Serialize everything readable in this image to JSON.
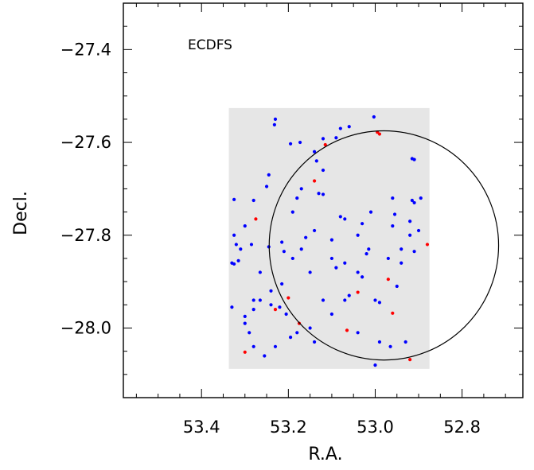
{
  "chart_data": {
    "type": "scatter",
    "title": "",
    "annotation": "ECDFS",
    "xlabel": "R.A.",
    "ylabel": "Decl.",
    "xlim": [
      53.58,
      52.66
    ],
    "ylim": [
      -28.15,
      -27.3
    ],
    "x_ticks": [
      {
        "value": 53.4,
        "label": "53.4"
      },
      {
        "value": 53.2,
        "label": "53.2"
      },
      {
        "value": 53.0,
        "label": "53.0"
      },
      {
        "value": 52.8,
        "label": "52.8"
      }
    ],
    "y_ticks": [
      {
        "value": -27.4,
        "label": "−27.4"
      },
      {
        "value": -27.6,
        "label": "−27.6"
      },
      {
        "value": -27.8,
        "label": "−27.8"
      },
      {
        "value": -28.0,
        "label": "−28.0"
      }
    ],
    "minor_step": 0.05,
    "grid": false,
    "coverage_region": {
      "ra_min": 52.875,
      "ra_max": 53.337,
      "dec_min": -28.088,
      "dec_max": -27.526,
      "color": "#e6e6e6"
    },
    "circle": {
      "ra_center": 52.98,
      "dec_center": -27.822,
      "radius_deg": 0.247
    },
    "series": [
      {
        "color": "#0000ff",
        "points": [
          [
            53.003,
            -27.545
          ],
          [
            53.23,
            -27.55
          ],
          [
            53.232,
            -27.562
          ],
          [
            53.173,
            -27.6
          ],
          [
            53.195,
            -27.603
          ],
          [
            53.12,
            -27.592
          ],
          [
            53.08,
            -27.57
          ],
          [
            53.06,
            -27.566
          ],
          [
            53.09,
            -27.59
          ],
          [
            53.14,
            -27.62
          ],
          [
            53.135,
            -27.64
          ],
          [
            53.12,
            -27.66
          ],
          [
            53.17,
            -27.7
          ],
          [
            53.18,
            -27.72
          ],
          [
            53.25,
            -27.695
          ],
          [
            53.245,
            -27.67
          ],
          [
            53.325,
            -27.723
          ],
          [
            53.28,
            -27.725
          ],
          [
            53.3,
            -27.78
          ],
          [
            53.13,
            -27.71
          ],
          [
            53.12,
            -27.712
          ],
          [
            53.19,
            -27.75
          ],
          [
            53.08,
            -27.76
          ],
          [
            53.07,
            -27.765
          ],
          [
            53.03,
            -27.775
          ],
          [
            53.01,
            -27.75
          ],
          [
            53.04,
            -27.8
          ],
          [
            53.1,
            -27.81
          ],
          [
            53.14,
            -27.79
          ],
          [
            53.16,
            -27.805
          ],
          [
            53.19,
            -27.85
          ],
          [
            53.215,
            -27.815
          ],
          [
            53.21,
            -27.835
          ],
          [
            53.245,
            -27.825
          ],
          [
            53.285,
            -27.82
          ],
          [
            53.325,
            -27.8
          ],
          [
            53.32,
            -27.82
          ],
          [
            53.31,
            -27.83
          ],
          [
            53.33,
            -27.86
          ],
          [
            53.325,
            -27.862
          ],
          [
            53.315,
            -27.855
          ],
          [
            53.265,
            -27.88
          ],
          [
            53.24,
            -27.92
          ],
          [
            53.215,
            -27.905
          ],
          [
            53.17,
            -27.83
          ],
          [
            53.15,
            -27.88
          ],
          [
            53.1,
            -27.85
          ],
          [
            53.09,
            -27.87
          ],
          [
            53.07,
            -27.86
          ],
          [
            53.04,
            -27.88
          ],
          [
            53.03,
            -27.89
          ],
          [
            53.02,
            -27.84
          ],
          [
            53.015,
            -27.83
          ],
          [
            53.0,
            -27.94
          ],
          [
            52.99,
            -27.945
          ],
          [
            52.97,
            -27.85
          ],
          [
            52.96,
            -27.78
          ],
          [
            52.955,
            -27.755
          ],
          [
            52.96,
            -27.72
          ],
          [
            52.94,
            -27.86
          ],
          [
            52.94,
            -27.83
          ],
          [
            52.95,
            -27.91
          ],
          [
            52.92,
            -27.77
          ],
          [
            52.915,
            -27.725
          ],
          [
            52.91,
            -27.73
          ],
          [
            52.895,
            -27.72
          ],
          [
            52.915,
            -27.635
          ],
          [
            52.91,
            -27.637
          ],
          [
            52.92,
            -27.8
          ],
          [
            52.9,
            -27.79
          ],
          [
            52.91,
            -27.835
          ],
          [
            52.93,
            -28.03
          ],
          [
            52.965,
            -28.04
          ],
          [
            52.99,
            -28.03
          ],
          [
            53.0,
            -28.08
          ],
          [
            53.04,
            -28.01
          ],
          [
            53.06,
            -27.93
          ],
          [
            53.07,
            -27.94
          ],
          [
            53.1,
            -27.97
          ],
          [
            53.12,
            -27.94
          ],
          [
            53.14,
            -28.03
          ],
          [
            53.15,
            -28.0
          ],
          [
            53.18,
            -28.01
          ],
          [
            53.195,
            -28.02
          ],
          [
            53.205,
            -27.97
          ],
          [
            53.22,
            -27.955
          ],
          [
            53.24,
            -27.95
          ],
          [
            53.265,
            -27.94
          ],
          [
            53.28,
            -27.94
          ],
          [
            53.28,
            -27.96
          ],
          [
            53.3,
            -27.99
          ],
          [
            53.29,
            -28.01
          ],
          [
            53.28,
            -28.04
          ],
          [
            53.255,
            -28.06
          ],
          [
            53.23,
            -28.04
          ],
          [
            53.33,
            -27.955
          ],
          [
            53.3,
            -27.975
          ]
        ]
      },
      {
        "color": "#ff0000",
        "points": [
          [
            52.995,
            -27.578
          ],
          [
            52.99,
            -27.582
          ],
          [
            53.115,
            -27.605
          ],
          [
            53.14,
            -27.683
          ],
          [
            53.275,
            -27.765
          ],
          [
            52.88,
            -27.82
          ],
          [
            53.04,
            -27.923
          ],
          [
            52.97,
            -27.895
          ],
          [
            52.96,
            -27.968
          ],
          [
            53.2,
            -27.935
          ],
          [
            53.23,
            -27.96
          ],
          [
            53.175,
            -27.99
          ],
          [
            53.065,
            -28.005
          ],
          [
            53.3,
            -28.052
          ],
          [
            52.92,
            -28.068
          ]
        ]
      }
    ]
  }
}
